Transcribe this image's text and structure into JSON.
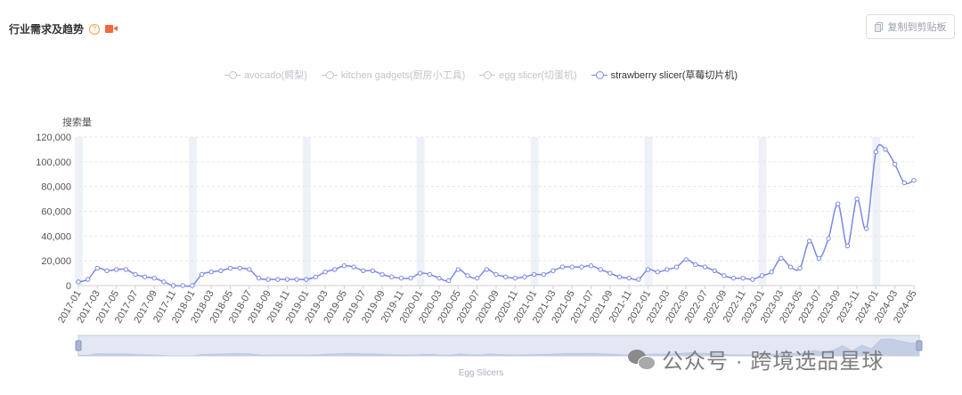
{
  "header": {
    "title": "行业需求及趋势",
    "help_glyph": "?"
  },
  "toolbar": {
    "copy_label": "复制到剪贴板"
  },
  "chart_data": {
    "type": "line",
    "y_unit_label": "搜索量",
    "ylim": [
      0,
      120000
    ],
    "y_ticks": [
      "120,000",
      "100,000",
      "80,000",
      "60,000",
      "40,000",
      "20,000",
      "0"
    ],
    "grid": true,
    "legend_position": "top",
    "x_tick_labels": [
      "2017-01",
      "2017-03",
      "2017-05",
      "2017-07",
      "2017-09",
      "2017-11",
      "2018-01",
      "2018-03",
      "2018-05",
      "2018-07",
      "2018-09",
      "2018-11",
      "2019-01",
      "2019-03",
      "2019-05",
      "2019-07",
      "2019-09",
      "2019-11",
      "2020-01",
      "2020-03",
      "2020-05",
      "2020-07",
      "2020-09",
      "2020-11",
      "2021-01",
      "2021-03",
      "2021-05",
      "2021-07",
      "2021-09",
      "2021-11",
      "2022-01",
      "2022-03",
      "2022-05",
      "2022-07",
      "2022-09",
      "2022-11",
      "2023-01",
      "2023-03",
      "2023-05",
      "2023-07",
      "2023-09",
      "2023-11",
      "2024-01",
      "2024-03",
      "2024-05"
    ],
    "months": [
      "2017-01",
      "2017-02",
      "2017-03",
      "2017-04",
      "2017-05",
      "2017-06",
      "2017-07",
      "2017-08",
      "2017-09",
      "2017-10",
      "2017-11",
      "2017-12",
      "2018-01",
      "2018-02",
      "2018-03",
      "2018-04",
      "2018-05",
      "2018-06",
      "2018-07",
      "2018-08",
      "2018-09",
      "2018-10",
      "2018-11",
      "2018-12",
      "2019-01",
      "2019-02",
      "2019-03",
      "2019-04",
      "2019-05",
      "2019-06",
      "2019-07",
      "2019-08",
      "2019-09",
      "2019-10",
      "2019-11",
      "2019-12",
      "2020-01",
      "2020-02",
      "2020-03",
      "2020-04",
      "2020-05",
      "2020-06",
      "2020-07",
      "2020-08",
      "2020-09",
      "2020-10",
      "2020-11",
      "2020-12",
      "2021-01",
      "2021-02",
      "2021-03",
      "2021-04",
      "2021-05",
      "2021-06",
      "2021-07",
      "2021-08",
      "2021-09",
      "2021-10",
      "2021-11",
      "2021-12",
      "2022-01",
      "2022-02",
      "2022-03",
      "2022-04",
      "2022-05",
      "2022-06",
      "2022-07",
      "2022-08",
      "2022-09",
      "2022-10",
      "2022-11",
      "2022-12",
      "2023-01",
      "2023-02",
      "2023-03",
      "2023-04",
      "2023-05",
      "2023-06",
      "2023-07",
      "2023-08",
      "2023-09",
      "2023-10",
      "2023-11",
      "2023-12",
      "2024-01",
      "2024-02",
      "2024-03",
      "2024-04",
      "2024-05"
    ],
    "series": [
      {
        "name": "avocado(鳄梨)",
        "visible": false,
        "values": []
      },
      {
        "name": "kitchen gadgets(厨房小工具)",
        "visible": false,
        "values": []
      },
      {
        "name": "egg slicer(切蛋机)",
        "visible": false,
        "values": []
      },
      {
        "name": "strawberry slicer(草莓切片机)",
        "visible": true,
        "color": "#7b88e6",
        "values": [
          3000,
          5000,
          14000,
          12000,
          13000,
          13000,
          9000,
          7000,
          6000,
          3000,
          0,
          0,
          0,
          9000,
          11000,
          12000,
          14000,
          14000,
          13000,
          6000,
          5000,
          5000,
          5000,
          5000,
          5000,
          7000,
          11000,
          13000,
          16000,
          15000,
          12000,
          12000,
          9000,
          7000,
          6000,
          6000,
          10000,
          9000,
          6000,
          4000,
          13000,
          8000,
          6000,
          13000,
          9000,
          7000,
          6000,
          7000,
          9000,
          9000,
          12000,
          15000,
          15000,
          15000,
          16000,
          13000,
          10000,
          7000,
          6000,
          5000,
          13000,
          11000,
          13000,
          15000,
          21000,
          17000,
          15000,
          12000,
          8000,
          6000,
          6000,
          5000,
          8000,
          11000,
          22000,
          15000,
          14000,
          36000,
          22000,
          38000,
          66000,
          32000,
          70000,
          46000,
          108000,
          110000,
          98000,
          83000,
          85000
        ]
      }
    ]
  },
  "slider": {
    "label": "Egg Slicers"
  },
  "watermark": {
    "text": "公众号 · 跨境选品星球"
  }
}
